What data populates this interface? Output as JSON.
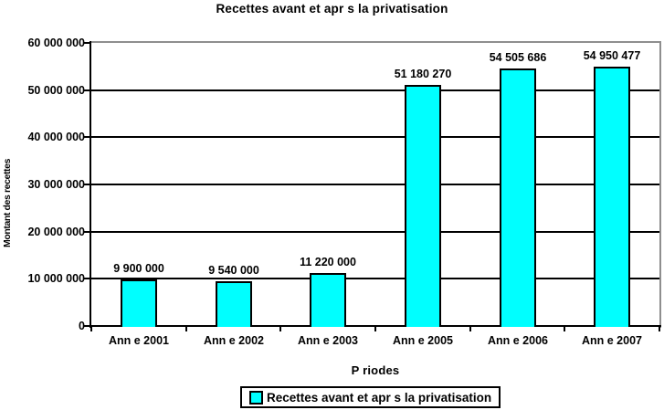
{
  "title": "Recettes avant et apr s la privatisation",
  "colors": {
    "bar_fill": "#00FFFF",
    "bar_border": "#000000",
    "grid": "#000000",
    "axis": "#000000",
    "frame": "#8E8E8E",
    "background": "#FFFFFF"
  },
  "chart_data": {
    "type": "bar",
    "title": "Recettes avant et apr s la privatisation",
    "categories": [
      "Ann e 2001",
      "Ann e 2002",
      "Ann e 2003",
      "Ann e 2005",
      "Ann e 2006",
      "Ann e 2007"
    ],
    "values": [
      9900000,
      9540000,
      11220000,
      51180270,
      54505686,
      54950477
    ],
    "value_labels": [
      "9 900 000",
      "9 540 000",
      "11 220 000",
      "51 180 270",
      "54 505 686",
      "54 950 477"
    ],
    "xlabel": "P riodes",
    "ylabel": "Montant des recettes",
    "ylim": [
      0,
      60000000
    ],
    "ytick_step": 10000000,
    "ytick_labels": [
      "0",
      "10 000 000",
      "20 000 000",
      "30 000 000",
      "40 000 000",
      "50 000 000",
      "60 000 000"
    ],
    "grid": true,
    "legend": {
      "position": "bottom",
      "entries": [
        {
          "label": "Recettes avant et apr s la privatisation",
          "color": "#00FFFF"
        }
      ]
    }
  }
}
